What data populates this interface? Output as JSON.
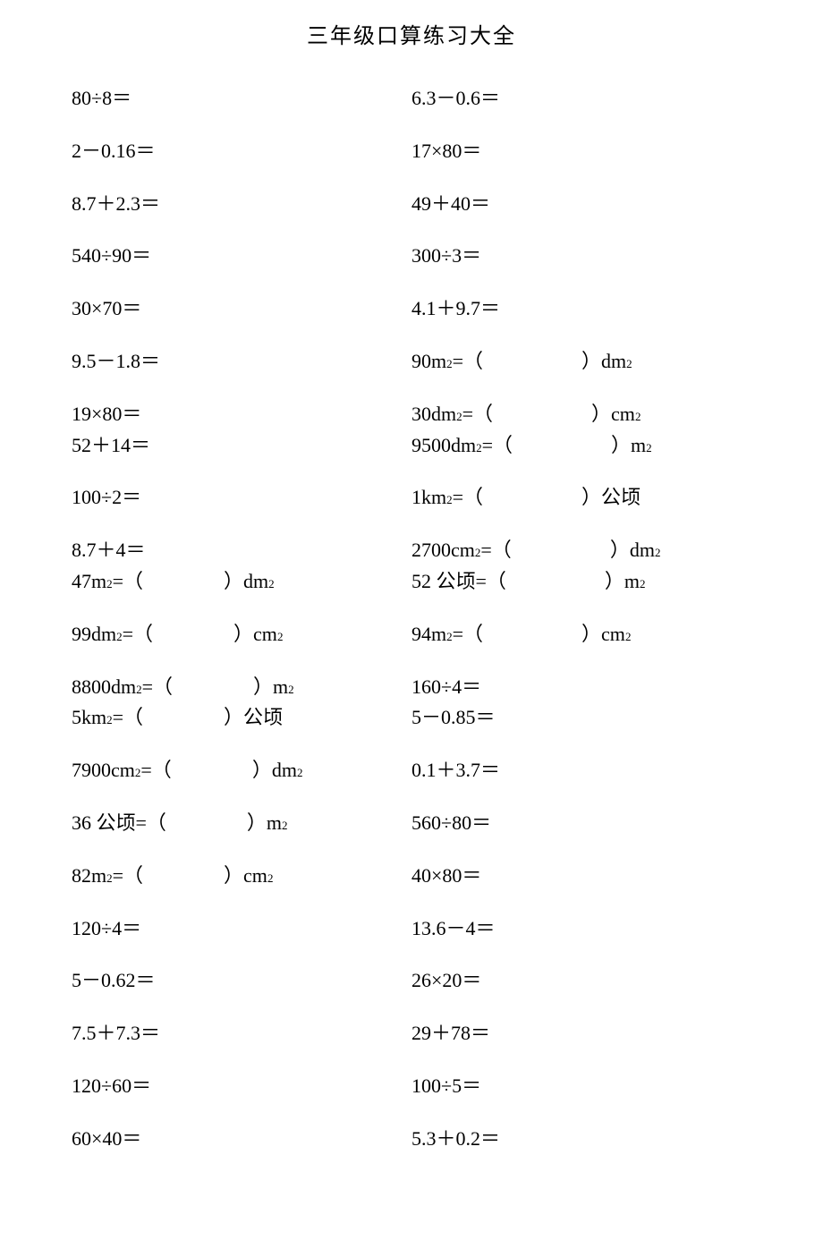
{
  "title": "三年级口算练习大全",
  "left": {
    "r1": "80÷8＝",
    "r2": "2－0.16＝",
    "r3": "8.7＋2.3＝",
    "r4": "540÷90＝",
    "r5": "30×70＝",
    "r6": "9.5－1.8＝",
    "r7": "19×80＝",
    "r8": "52＋14＝",
    "r9": "100÷2＝",
    "r10": "8.7＋4＝",
    "r11_pre": "47m",
    "r11_sup": "2",
    "r11_mid": "=（",
    "r11_post": "）dm",
    "r11_sup2": "2",
    "r12_pre": "99dm",
    "r12_sup": "2",
    "r12_mid": "=（",
    "r12_post": "）cm",
    "r12_sup2": "2",
    "r13_pre": "8800dm",
    "r13_sup": "2",
    "r13_mid": "=（",
    "r13_post": "）m",
    "r13_sup2": "2",
    "r14_pre": "5km",
    "r14_sup": "2",
    "r14_mid": "=（",
    "r14_post": "）公顷",
    "r15_pre": "7900cm",
    "r15_sup": "2",
    "r15_mid": "=（",
    "r15_post": "）dm",
    "r15_sup2": "2",
    "r16_pre": "36 公顷=（",
    "r16_post": "）m",
    "r16_sup2": "2",
    "r17_pre": "82m",
    "r17_sup": "2",
    "r17_mid": "=（",
    "r17_post": "）cm",
    "r17_sup2": "2",
    "r18": "120÷4＝",
    "r19": "5－0.62＝",
    "r20": "7.5＋7.3＝",
    "r21": "120÷60＝",
    "r22": "60×40＝"
  },
  "right": {
    "r1": "6.3－0.6＝",
    "r2": "17×80＝",
    "r3": "49＋40＝",
    "r4": "300÷3＝",
    "r5": "4.1＋9.7＝",
    "r6_pre": "90m",
    "r6_sup": "2",
    "r6_mid": "=（",
    "r6_post": "）dm",
    "r6_sup2": "2",
    "r7_pre": "30dm",
    "r7_sup": "2",
    "r7_mid": "=（",
    "r7_post": "）cm",
    "r7_sup2": "2",
    "r8_pre": "9500dm",
    "r8_sup": "2",
    "r8_mid": "=（",
    "r8_post": "）m",
    "r8_sup2": "2",
    "r9_pre": "1km",
    "r9_sup": "2",
    "r9_mid": "=（",
    "r9_post": "）公顷",
    "r10_pre": "2700cm",
    "r10_sup": "2",
    "r10_mid": "=（",
    "r10_post": "）dm",
    "r10_sup2": "2",
    "r11_pre": "52 公顷=（",
    "r11_post": "）m",
    "r11_sup2": "2",
    "r12_pre": "94m",
    "r12_sup": "2",
    "r12_mid": "=（",
    "r12_post": "）cm",
    "r12_sup2": "2",
    "r13": "160÷4＝",
    "r14": "5－0.85＝",
    "r15": "0.1＋3.7＝",
    "r16": "560÷80＝",
    "r17": "40×80＝",
    "r18": "13.6－4＝",
    "r19": "26×20＝",
    "r20": "29＋78＝",
    "r21": "100÷5＝",
    "r22": "5.3＋0.2＝"
  }
}
